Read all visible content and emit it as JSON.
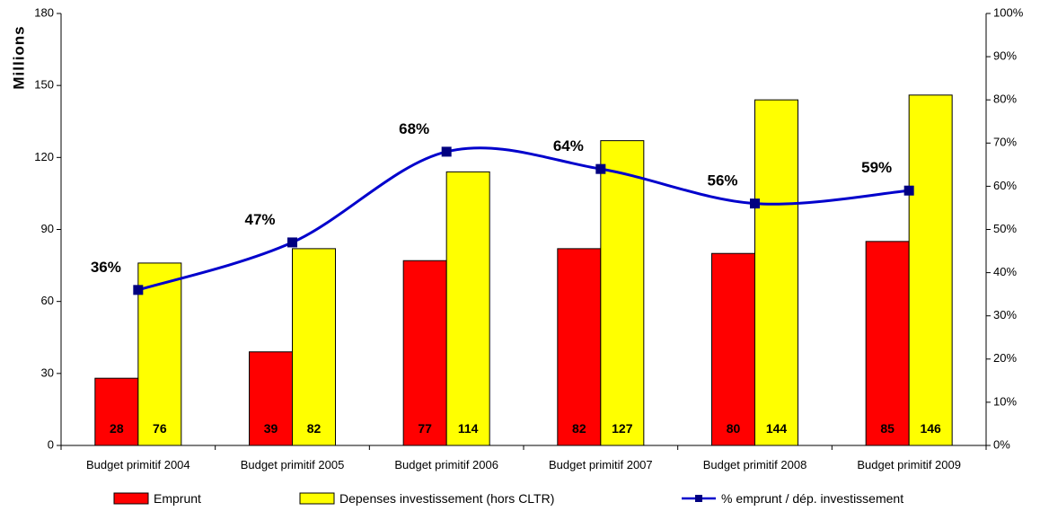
{
  "chart_data": {
    "type": "bar",
    "categories": [
      "Budget primitif 2004",
      "Budget primitif 2005",
      "Budget primitif 2006",
      "Budget primitif 2007",
      "Budget primitif 2008",
      "Budget primitif 2009"
    ],
    "series": [
      {
        "name": "Emprunt",
        "type": "bar",
        "axis": "left",
        "color": "#ff0000",
        "values": [
          28,
          39,
          77,
          82,
          80,
          85
        ],
        "labels": [
          "28",
          "39",
          "77",
          "82",
          "80",
          "85"
        ]
      },
      {
        "name": "Depenses investissement (hors CLTR)",
        "type": "bar",
        "axis": "left",
        "color": "#ffff00",
        "values": [
          76,
          82,
          114,
          127,
          144,
          146
        ],
        "labels": [
          "76",
          "82",
          "114",
          "127",
          "144",
          "146"
        ]
      },
      {
        "name": "% emprunt / dép. investissement",
        "type": "line",
        "axis": "right",
        "color": "#0000cc",
        "values": [
          36,
          47,
          68,
          64,
          56,
          59
        ],
        "labels": [
          "36%",
          "47%",
          "68%",
          "64%",
          "56%",
          "59%"
        ]
      }
    ],
    "ylabel": "Millions",
    "ylim": [
      0,
      180
    ],
    "yticks": [
      "0",
      "30",
      "60",
      "90",
      "120",
      "150",
      "180"
    ],
    "y2lim": [
      0,
      100
    ],
    "y2ticks": [
      "0%",
      "10%",
      "20%",
      "30%",
      "40%",
      "50%",
      "60%",
      "70%",
      "80%",
      "90%",
      "100%"
    ],
    "grid": false,
    "legend_position": "bottom"
  }
}
